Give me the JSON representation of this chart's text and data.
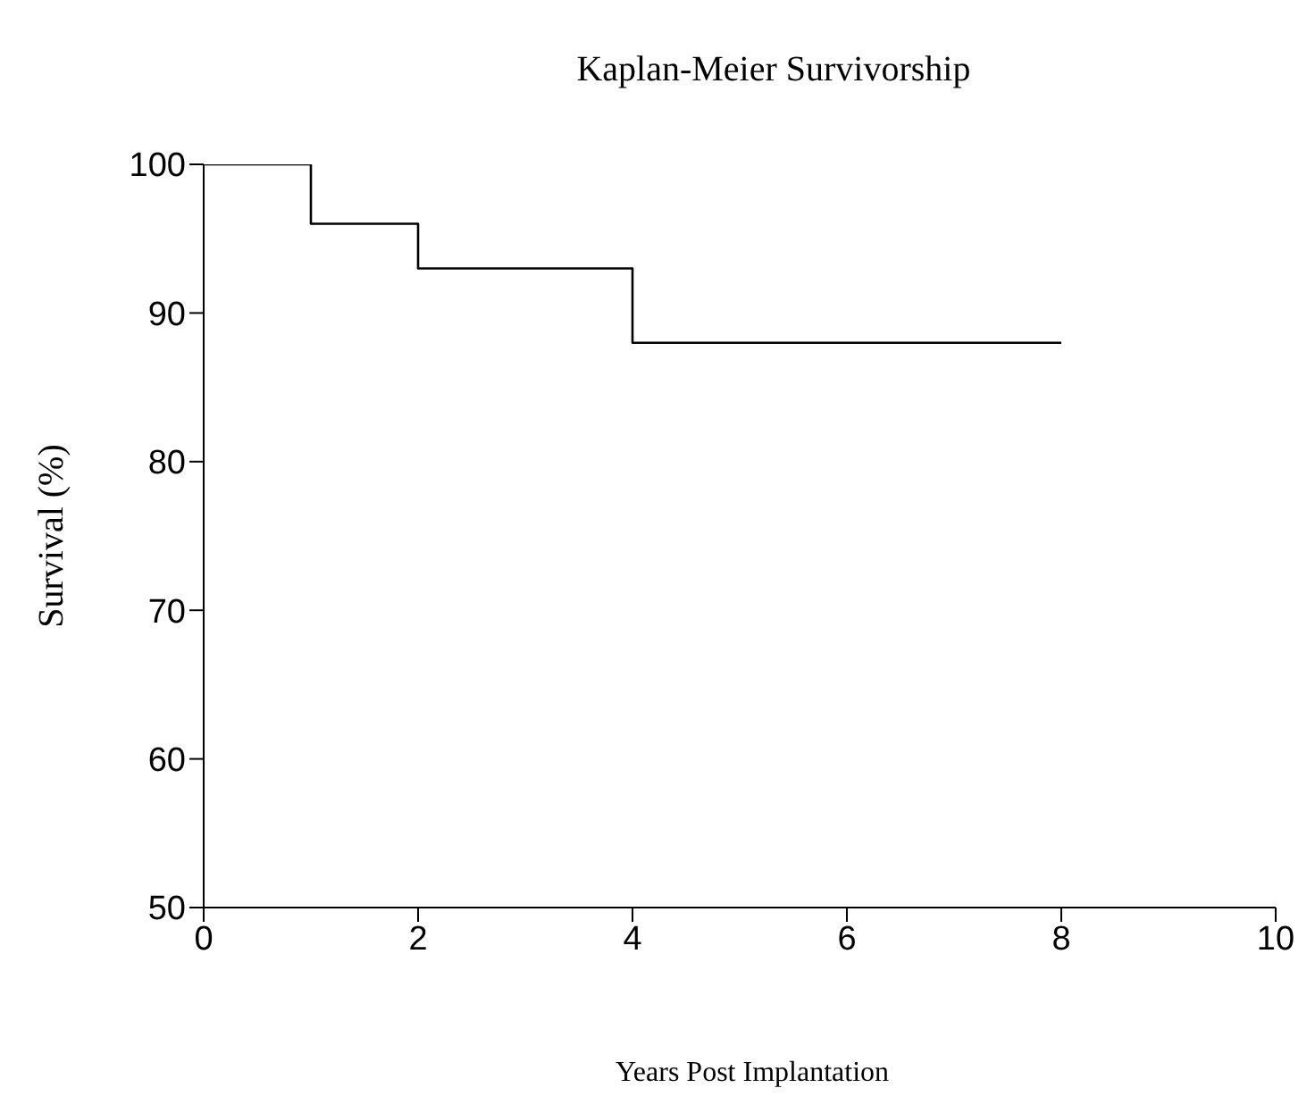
{
  "chart_data": {
    "type": "step",
    "title": "Kaplan-Meier Survivorship",
    "xlabel": "Years Post Implantation",
    "ylabel": "Survival (%)",
    "x": [
      0,
      1,
      2,
      4,
      8
    ],
    "values": [
      100,
      96,
      93,
      88,
      88
    ],
    "color": "#000000",
    "xlim": [
      0,
      10
    ],
    "xticks": [
      0,
      2,
      4,
      6,
      8,
      10
    ],
    "ylim": [
      50,
      100
    ],
    "yticks": [
      50,
      60,
      70,
      80,
      90,
      100
    ]
  }
}
